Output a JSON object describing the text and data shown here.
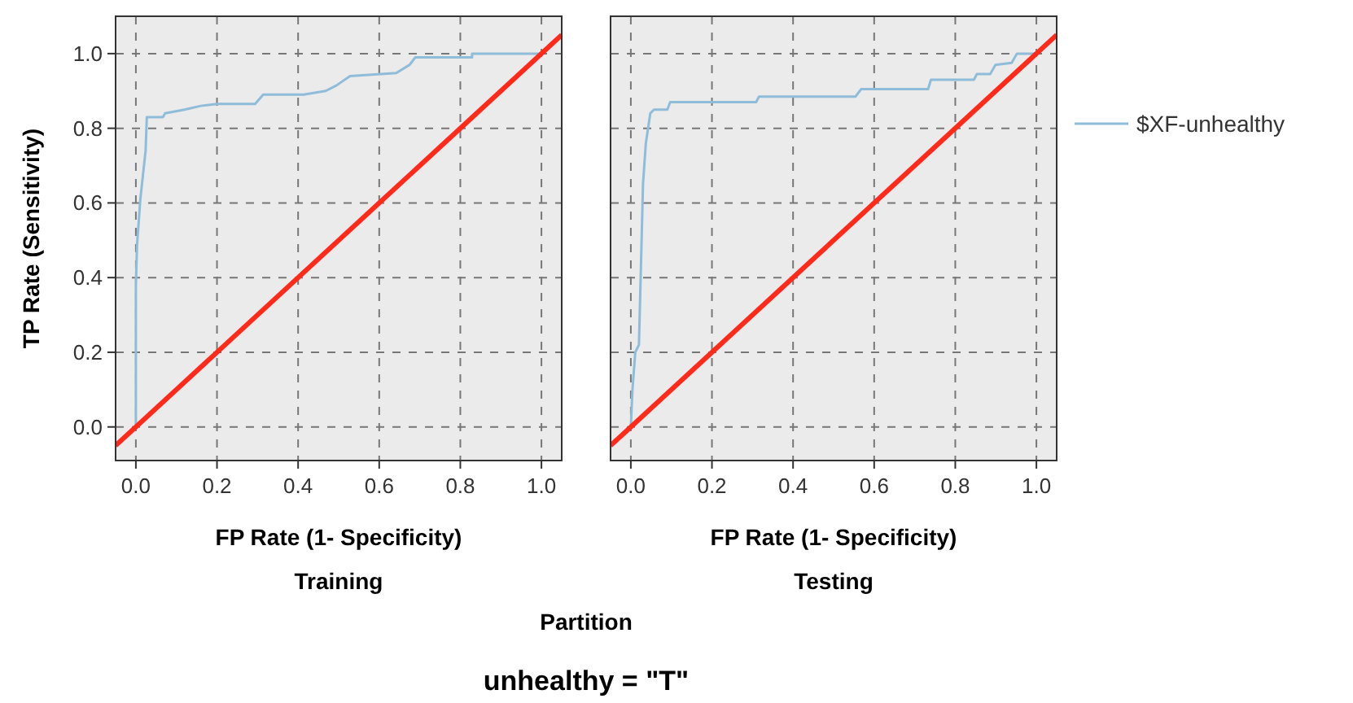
{
  "chart_data": [
    {
      "type": "line",
      "title": "Training",
      "xlabel": "FP Rate (1- Specificity)",
      "ylabel": "TP Rate (Sensitivity)",
      "annotations": [
        "Partition",
        "unhealthy = \"T\""
      ],
      "xlim": [
        -0.05,
        1.05
      ],
      "ylim": [
        -0.09,
        1.1
      ],
      "xticks": [
        {
          "value": 0,
          "label": "0.0"
        },
        {
          "value": 0.2,
          "label": "0.2"
        },
        {
          "value": 0.4,
          "label": "0.4"
        },
        {
          "value": 0.6,
          "label": "0.6"
        },
        {
          "value": 0.8,
          "label": "0.8"
        },
        {
          "value": 1,
          "label": "1.0"
        }
      ],
      "yticks": [
        {
          "value": 0,
          "label": "0.0"
        },
        {
          "value": 0.2,
          "label": "0.2"
        },
        {
          "value": 0.4,
          "label": "0.4"
        },
        {
          "value": 0.6,
          "label": "0.6"
        },
        {
          "value": 0.8,
          "label": "0.8"
        },
        {
          "value": 1,
          "label": "1.0"
        }
      ],
      "grid": true,
      "line_style": "solid",
      "marker": "none",
      "series": [
        {
          "color": "#8fbcd9",
          "x": [
            0,
            0,
            0.003,
            0.011,
            0.024,
            0.027,
            0.067,
            0.072,
            0.12,
            0.16,
            0.2,
            0.294,
            0.314,
            0.414,
            0.468,
            0.495,
            0.528,
            0.642,
            0.675,
            0.689,
            0.829,
            0.829,
            1.0
          ],
          "values": [
            0,
            0.38,
            0.49,
            0.61,
            0.74,
            0.83,
            0.83,
            0.84,
            0.85,
            0.86,
            0.865,
            0.865,
            0.89,
            0.89,
            0.9,
            0.915,
            0.94,
            0.948,
            0.97,
            0.99,
            0.99,
            1.0,
            1.0
          ]
        },
        {
          "color": "#ff2a1a",
          "x": [
            -0.05,
            1.05
          ],
          "values": [
            -0.05,
            1.05
          ]
        }
      ]
    },
    {
      "type": "line",
      "title": "Testing",
      "xlabel": "FP Rate (1- Specificity)",
      "tick_labels": "x",
      "legend": "right",
      "xlim": [
        -0.05,
        1.05
      ],
      "ylim": [
        -0.09,
        1.1
      ],
      "xticks": [
        {
          "value": 0,
          "label": "0.0"
        },
        {
          "value": 0.2,
          "label": "0.2"
        },
        {
          "value": 0.4,
          "label": "0.4"
        },
        {
          "value": 0.6,
          "label": "0.6"
        },
        {
          "value": 0.8,
          "label": "0.8"
        },
        {
          "value": 1,
          "label": "1.0"
        }
      ],
      "yticks": [
        {
          "value": 0,
          "label": null
        },
        {
          "value": 0.2,
          "label": null
        },
        {
          "value": 0.4,
          "label": null
        },
        {
          "value": 0.6,
          "label": null
        },
        {
          "value": 0.8,
          "label": null
        },
        {
          "value": 1,
          "label": null
        }
      ],
      "grid": true,
      "line_style": "solid",
      "marker": "none",
      "series": [
        {
          "name": "$XF-unhealthy",
          "color": "#8fbcd9",
          "x": [
            0,
            0.004,
            0.011,
            0.02,
            0.024,
            0.03,
            0.037,
            0.048,
            0.057,
            0.09,
            0.097,
            0.309,
            0.316,
            0.554,
            0.568,
            0.733,
            0.74,
            0.846,
            0.853,
            0.886,
            0.899,
            0.939,
            0.952,
            1.0
          ],
          "values": [
            0,
            0.1,
            0.2,
            0.22,
            0.39,
            0.65,
            0.76,
            0.84,
            0.85,
            0.85,
            0.87,
            0.87,
            0.885,
            0.885,
            0.905,
            0.905,
            0.93,
            0.93,
            0.945,
            0.945,
            0.97,
            0.975,
            1.0,
            1.0
          ]
        },
        {
          "color": "#ff2a1a",
          "x": [
            -0.05,
            1.05
          ],
          "values": [
            -0.05,
            1.05
          ]
        }
      ]
    }
  ]
}
